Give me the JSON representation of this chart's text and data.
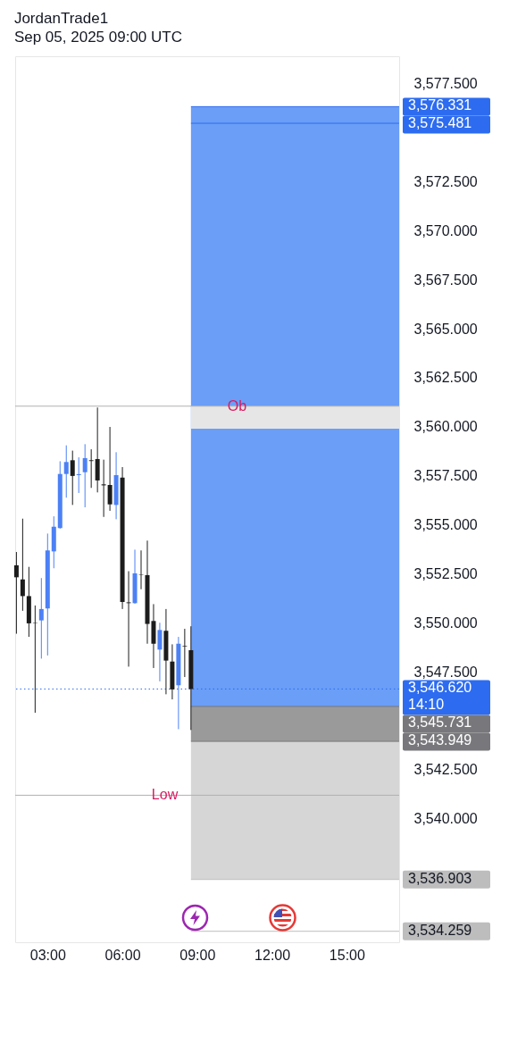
{
  "chart_data": {
    "type": "candlestick",
    "title": "JordanTrade1",
    "subtitle": "Sep 05, 2025 09:00 UTC",
    "x": [
      1.75,
      2,
      2.25,
      2.5,
      2.75,
      3,
      3.25,
      3.5,
      3.75,
      4,
      4.25,
      4.5,
      4.75,
      5,
      5.25,
      5.5,
      5.75,
      6,
      6.25,
      6.5,
      6.75,
      7,
      7.25,
      7.5,
      7.75,
      8,
      8.25,
      8.5,
      8.75
    ],
    "ohlc": [
      [
        3552.93,
        3553.61,
        3549.44,
        3552.32
      ],
      [
        3552.21,
        3555.31,
        3550.61,
        3551.36
      ],
      [
        3551.36,
        3552.85,
        3549.28,
        3549.97
      ],
      [
        3549.99,
        3550.88,
        3545.41,
        3549.97
      ],
      [
        3550.12,
        3552.28,
        3548.17,
        3550.7
      ],
      [
        3550.73,
        3554.55,
        3548.33,
        3553.69
      ],
      [
        3553.64,
        3555.43,
        3552.78,
        3554.9
      ],
      [
        3554.83,
        3558.24,
        3554.8,
        3557.59
      ],
      [
        3557.59,
        3559.05,
        3556.38,
        3558.2
      ],
      [
        3558.29,
        3558.78,
        3556.01,
        3557.49
      ],
      [
        3557.53,
        3558.44,
        3556.62,
        3557.58
      ],
      [
        3557.68,
        3559.11,
        3555.89,
        3558.4
      ],
      [
        3558.29,
        3558.85,
        3556.88,
        3558.25
      ],
      [
        3558.35,
        3560.98,
        3556.65,
        3557.26
      ],
      [
        3557.06,
        3558.32,
        3555.4,
        3557.01
      ],
      [
        3557.03,
        3559.99,
        3555.71,
        3556.04
      ],
      [
        3556.01,
        3558.7,
        3555.28,
        3557.53
      ],
      [
        3557.41,
        3557.94,
        3550.7,
        3551.06
      ],
      [
        3551.04,
        3552.63,
        3547.76,
        3551
      ],
      [
        3551,
        3553.73,
        3550.97,
        3552.52
      ],
      [
        3552.47,
        3553.69,
        3551.71,
        3552.45
      ],
      [
        3552.43,
        3554.19,
        3548.93,
        3549.94
      ],
      [
        3550.09,
        3550.95,
        3547.69,
        3548.93
      ],
      [
        3548.63,
        3550,
        3547.01,
        3549.63
      ],
      [
        3549.59,
        3550.7,
        3546.35,
        3548.07
      ],
      [
        3548.02,
        3548.9,
        3546.09,
        3546.6
      ],
      [
        3546.81,
        3549.28,
        3544.57,
        3548.93
      ],
      [
        3548.82,
        3549.69,
        3547.23,
        3548.79
      ],
      [
        3548.6,
        3549.82,
        3544.53,
        3546.62
      ]
    ],
    "colors": [
      "#1c1c1c",
      "#1c1c1c",
      "#1c1c1c",
      "#1c1c1c",
      "#4c80f5",
      "#4c80f5",
      "#4c80f5",
      "#4c80f5",
      "#4c80f5",
      "#1c1c1c",
      "#4c80f5",
      "#4c80f5",
      "#1c1c1c",
      "#1c1c1c",
      "#1c1c1c",
      "#1c1c1c",
      "#4c80f5",
      "#1c1c1c",
      "#1c1c1c",
      "#4c80f5",
      "#1c1c1c",
      "#1c1c1c",
      "#1c1c1c",
      "#4c80f5",
      "#1c1c1c",
      "#1c1c1c",
      "#4c80f5",
      "#1c1c1c",
      "#1c1c1c"
    ],
    "xlim": [
      1.7,
      17.1
    ],
    "xticks": [
      {
        "value": 3,
        "label": "03:00"
      },
      {
        "value": 6,
        "label": "06:00"
      },
      {
        "value": 9,
        "label": "09:00"
      },
      {
        "value": 12,
        "label": "12:00"
      },
      {
        "value": 15,
        "label": "15:00"
      }
    ],
    "ylim": [
      3533.7,
      3578.9
    ],
    "yticks": [
      {
        "value": 3540,
        "label": "3,540.000"
      },
      {
        "value": 3542.5,
        "label": "3,542.500"
      },
      {
        "value": 3547.5,
        "label": "3,547.500"
      },
      {
        "value": 3550,
        "label": "3,550.000"
      },
      {
        "value": 3552.5,
        "label": "3,552.500"
      },
      {
        "value": 3555,
        "label": "3,555.000"
      },
      {
        "value": 3557.5,
        "label": "3,557.500"
      },
      {
        "value": 3560,
        "label": "3,560.000"
      },
      {
        "value": 3562.5,
        "label": "3,562.500"
      },
      {
        "value": 3565,
        "label": "3,565.000"
      },
      {
        "value": 3567.5,
        "label": "3,567.500"
      },
      {
        "value": 3570,
        "label": "3,570.000"
      },
      {
        "value": 3572.5,
        "label": "3,572.500"
      },
      {
        "value": 3577.5,
        "label": "3,577.500"
      }
    ],
    "bands": [
      {
        "axis": "y",
        "from": 3545.731,
        "to": 3576.331,
        "color": "#6a9ef7"
      },
      {
        "axis": "y",
        "from": 3536.903,
        "to": 3545.731,
        "color": "#d6d6d6"
      },
      {
        "axis": "y",
        "from": 3543.949,
        "to": 3545.731,
        "color": "#9a9a9a"
      },
      {
        "axis": "y",
        "from": 3559.9,
        "to": 3561.05,
        "color": "#e6e6e6"
      }
    ],
    "ref_lines": [
      {
        "axis": "y",
        "value": 3576.331,
        "label": "3,576.331",
        "color": "#2d6cf0",
        "line_style": "solid"
      },
      {
        "axis": "y",
        "value": 3575.481,
        "label": "3,575.481",
        "color": "#2d6cf0",
        "line_style": "solid"
      },
      {
        "axis": "y",
        "value": 3546.62,
        "label": "3,546.620\n14:10",
        "color": "#2d6cf0",
        "line_style": "dotted"
      },
      {
        "axis": "y",
        "value": 3545.731,
        "label": "3,545.731",
        "color": "#78787c",
        "line_style": "solid"
      },
      {
        "axis": "y",
        "value": 3543.949,
        "label": "3,543.949",
        "color": "#78787c",
        "line_style": "solid"
      },
      {
        "axis": "y",
        "value": 3536.903,
        "label": "3,536.903",
        "color": "#bdbdbd",
        "line_style": "solid"
      },
      {
        "axis": "y",
        "value": 3534.259,
        "label": "3,534.259",
        "color": "#bdbdbd",
        "line_style": "solid"
      },
      {
        "axis": "y",
        "value": 3561.05,
        "color": "#b0b0b0",
        "line_style": "solid"
      },
      {
        "axis": "y",
        "value": 3541.2,
        "color": "#b0b0b0",
        "line_style": "solid"
      }
    ],
    "annotations": [
      {
        "text": "Ob",
        "x": 10.6,
        "y": 3561.05
      },
      {
        "text": "Low",
        "x": 7.7,
        "y": 3541.2
      }
    ]
  }
}
